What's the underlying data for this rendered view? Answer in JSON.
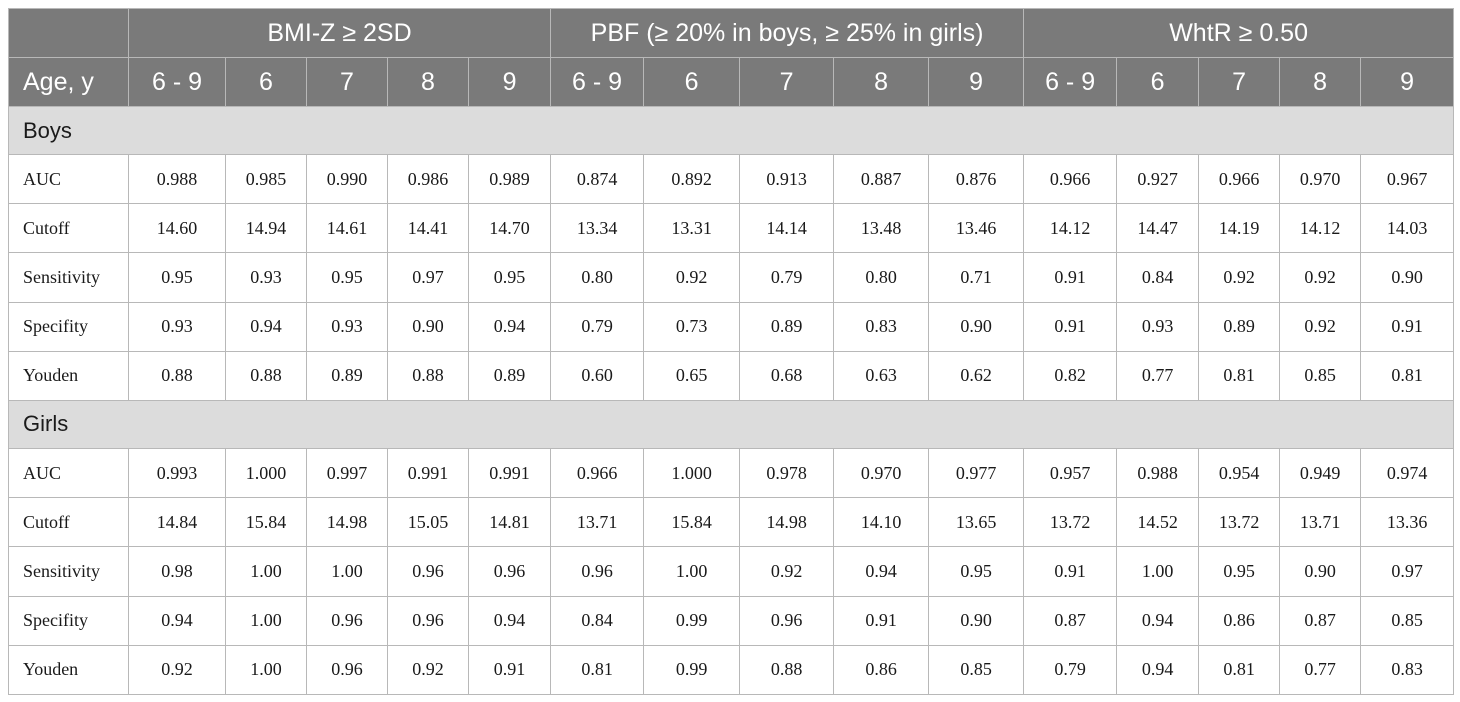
{
  "header": {
    "corner": "",
    "groups": [
      "BMI-Z ≥ 2SD",
      "PBF (≥ 20% in boys, ≥ 25% in girls)",
      "WhtR ≥ 0.50"
    ],
    "age_label": "Age, y",
    "ages": [
      "6 - 9",
      "6",
      "7",
      "8",
      "9",
      "6 - 9",
      "6",
      "7",
      "8",
      "9",
      "6 - 9",
      "6",
      "7",
      "8",
      "9"
    ]
  },
  "sections": [
    {
      "title": "Boys",
      "rows": [
        {
          "label": "AUC",
          "values": [
            "0.988",
            "0.985",
            "0.990",
            "0.986",
            "0.989",
            "0.874",
            "0.892",
            "0.913",
            "0.887",
            "0.876",
            "0.966",
            "0.927",
            "0.966",
            "0.970",
            "0.967"
          ]
        },
        {
          "label": "Cutoff",
          "values": [
            "14.60",
            "14.94",
            "14.61",
            "14.41",
            "14.70",
            "13.34",
            "13.31",
            "14.14",
            "13.48",
            "13.46",
            "14.12",
            "14.47",
            "14.19",
            "14.12",
            "14.03"
          ]
        },
        {
          "label": "Sensitivity",
          "values": [
            "0.95",
            "0.93",
            "0.95",
            "0.97",
            "0.95",
            "0.80",
            "0.92",
            "0.79",
            "0.80",
            "0.71",
            "0.91",
            "0.84",
            "0.92",
            "0.92",
            "0.90"
          ]
        },
        {
          "label": "Specifity",
          "values": [
            "0.93",
            "0.94",
            "0.93",
            "0.90",
            "0.94",
            "0.79",
            "0.73",
            "0.89",
            "0.83",
            "0.90",
            "0.91",
            "0.93",
            "0.89",
            "0.92",
            "0.91"
          ]
        },
        {
          "label": "Youden",
          "values": [
            "0.88",
            "0.88",
            "0.89",
            "0.88",
            "0.89",
            "0.60",
            "0.65",
            "0.68",
            "0.63",
            "0.62",
            "0.82",
            "0.77",
            "0.81",
            "0.85",
            "0.81"
          ]
        }
      ]
    },
    {
      "title": "Girls",
      "rows": [
        {
          "label": "AUC",
          "values": [
            "0.993",
            "1.000",
            "0.997",
            "0.991",
            "0.991",
            "0.966",
            "1.000",
            "0.978",
            "0.970",
            "0.977",
            "0.957",
            "0.988",
            "0.954",
            "0.949",
            "0.974"
          ]
        },
        {
          "label": "Cutoff",
          "values": [
            "14.84",
            "15.84",
            "14.98",
            "15.05",
            "14.81",
            "13.71",
            "15.84",
            "14.98",
            "14.10",
            "13.65",
            "13.72",
            "14.52",
            "13.72",
            "13.71",
            "13.36"
          ]
        },
        {
          "label": "Sensitivity",
          "values": [
            "0.98",
            "1.00",
            "1.00",
            "0.96",
            "0.96",
            "0.96",
            "1.00",
            "0.92",
            "0.94",
            "0.95",
            "0.91",
            "1.00",
            "0.95",
            "0.90",
            "0.97"
          ]
        },
        {
          "label": "Specifity",
          "values": [
            "0.94",
            "1.00",
            "0.96",
            "0.96",
            "0.94",
            "0.84",
            "0.99",
            "0.96",
            "0.91",
            "0.90",
            "0.87",
            "0.94",
            "0.86",
            "0.87",
            "0.85"
          ]
        },
        {
          "label": "Youden",
          "values": [
            "0.92",
            "1.00",
            "0.96",
            "0.92",
            "0.91",
            "0.81",
            "0.99",
            "0.88",
            "0.86",
            "0.85",
            "0.79",
            "0.94",
            "0.81",
            "0.77",
            "0.83"
          ]
        }
      ]
    }
  ]
}
